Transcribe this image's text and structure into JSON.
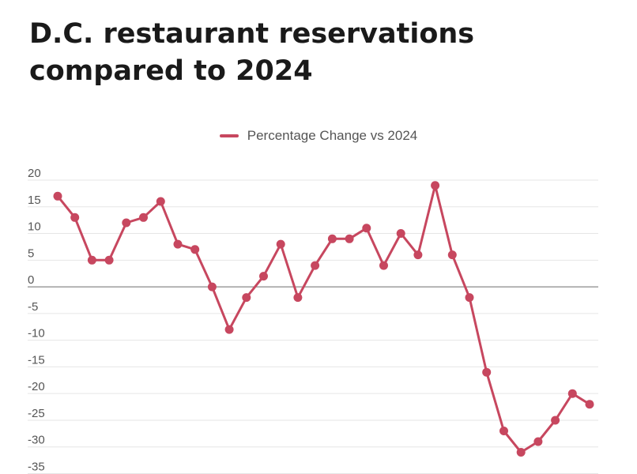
{
  "chart_data": {
    "type": "line",
    "title": "D.C. restaurant reservations compared to 2024",
    "xlabel": "",
    "ylabel": "",
    "ylim": [
      -35,
      20
    ],
    "yticks": [
      20,
      15,
      10,
      5,
      0,
      -5,
      -10,
      -15,
      -20,
      -25,
      -30,
      -35
    ],
    "legend_position": "top-center",
    "series": [
      {
        "name": "Percentage Change vs 2024",
        "color": "#c7475f",
        "values": [
          17,
          13,
          5,
          5,
          12,
          13,
          16,
          8,
          7,
          0,
          -8,
          -2,
          2,
          8,
          -2,
          4,
          9,
          9,
          11,
          4,
          10,
          6,
          19,
          6,
          -2,
          -16,
          -27,
          -31,
          -29,
          -25,
          -20,
          -22
        ]
      }
    ]
  }
}
